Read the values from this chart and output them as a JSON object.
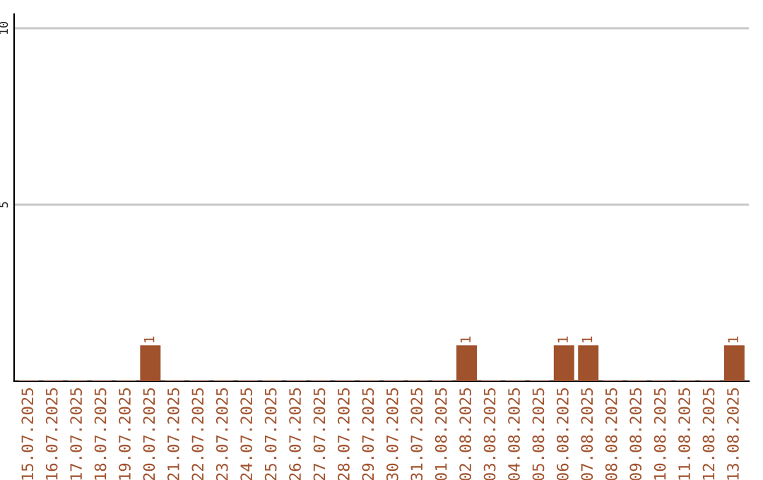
{
  "chart_data": {
    "type": "bar",
    "categories": [
      "15.07.2025",
      "16.07.2025",
      "17.07.2025",
      "18.07.2025",
      "19.07.2025",
      "20.07.2025",
      "21.07.2025",
      "22.07.2025",
      "23.07.2025",
      "24.07.2025",
      "25.07.2025",
      "26.07.2025",
      "27.07.2025",
      "28.07.2025",
      "29.07.2025",
      "30.07.2025",
      "31.07.2025",
      "01.08.2025",
      "02.08.2025",
      "03.08.2025",
      "04.08.2025",
      "05.08.2025",
      "06.08.2025",
      "07.08.2025",
      "08.08.2025",
      "09.08.2025",
      "10.08.2025",
      "11.08.2025",
      "12.08.2025",
      "13.08.2025"
    ],
    "values": [
      0,
      0,
      0,
      0,
      0,
      1,
      0,
      0,
      0,
      0,
      0,
      0,
      0,
      0,
      0,
      0,
      0,
      0,
      1,
      0,
      0,
      0,
      1,
      1,
      0,
      0,
      0,
      0,
      0,
      1
    ],
    "value_labels": [
      null,
      null,
      null,
      null,
      null,
      "1",
      null,
      null,
      null,
      null,
      null,
      null,
      null,
      null,
      null,
      null,
      null,
      null,
      "1",
      null,
      null,
      null,
      "1",
      "1",
      null,
      null,
      null,
      null,
      null,
      "1"
    ],
    "color": "#a0522d",
    "ylim": [
      0,
      10.4
    ],
    "yticks": [
      5,
      10
    ],
    "grid": "y"
  }
}
